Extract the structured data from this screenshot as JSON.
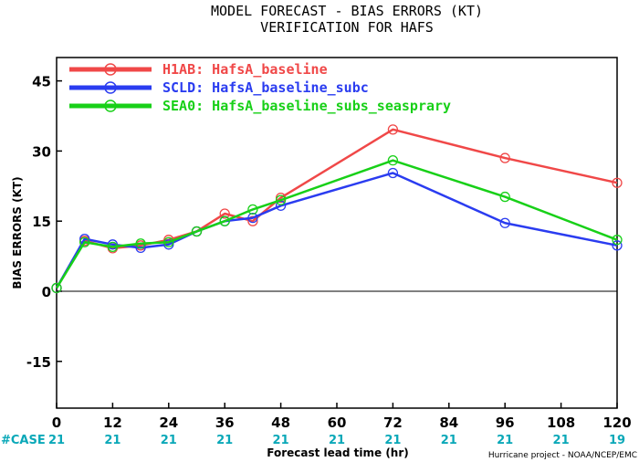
{
  "title": "MODEL FORECAST - BIAS ERRORS (KT)",
  "subtitle": "VERIFICATION FOR HAFS",
  "credit": "Hurricane project - NOAA/NCEP/EMC",
  "chart_data": {
    "type": "line",
    "title": "MODEL FORECAST - BIAS ERRORS (KT)",
    "subtitle": "VERIFICATION FOR HAFS",
    "xlabel": "Forecast lead time (hr)",
    "ylabel": "BIAS ERRORS (KT)",
    "xlim": [
      0,
      120
    ],
    "ylim": [
      -25,
      50
    ],
    "x_ticks": [
      0,
      12,
      24,
      36,
      48,
      60,
      72,
      84,
      96,
      108,
      120
    ],
    "x_tick_labels": [
      "0",
      "12",
      "24",
      "36",
      "48",
      "60",
      "72",
      "84",
      "96",
      "108",
      "120"
    ],
    "y_ticks": [
      -15,
      0,
      15,
      30,
      45
    ],
    "y_tick_labels": [
      "-15",
      "0",
      "15",
      "30",
      "45"
    ],
    "legend_position": "top-left",
    "zero_line": true,
    "x": [
      0,
      6,
      12,
      18,
      24,
      30,
      36,
      42,
      48,
      72,
      96,
      120
    ],
    "series": [
      {
        "name": "H1AB: HafsA_baseline",
        "color": "#f04848",
        "values": [
          0.7,
          10.8,
          9.2,
          9.8,
          11.0,
          12.8,
          16.6,
          15.0,
          20.0,
          34.6,
          28.5,
          23.2
        ]
      },
      {
        "name": "SCLD: HafsA_baseline_subc",
        "color": "#2a3cf0",
        "values": [
          0.7,
          11.2,
          10.0,
          9.3,
          10.0,
          12.8,
          15.0,
          15.7,
          18.3,
          25.3,
          14.6,
          9.8
        ]
      },
      {
        "name": "SEA0: HafsA_baseline_subs_seasprary",
        "color": "#18d018",
        "values": [
          0.7,
          10.5,
          9.5,
          10.2,
          10.5,
          12.8,
          15.0,
          17.5,
          19.5,
          28.0,
          20.2,
          11.0
        ]
      }
    ],
    "case_label": "#CASE",
    "case_ticks": [
      0,
      12,
      24,
      36,
      48,
      60,
      72,
      84,
      96,
      108,
      120
    ],
    "case_counts": [
      "21",
      "21",
      "21",
      "21",
      "21",
      "21",
      "21",
      "21",
      "21",
      "21",
      "19"
    ]
  }
}
